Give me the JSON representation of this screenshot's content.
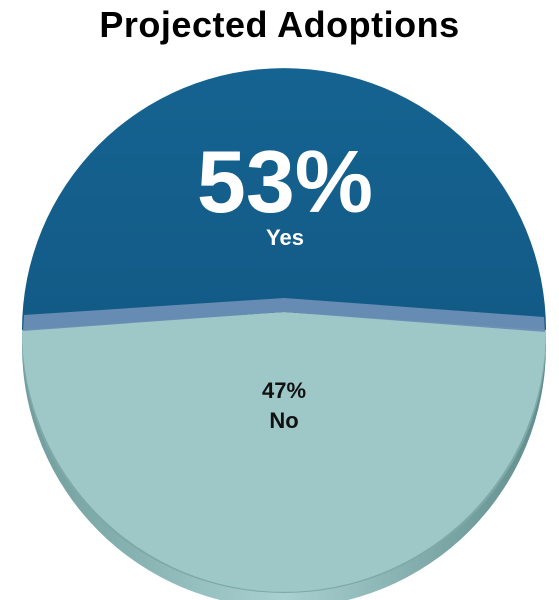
{
  "chart_data": {
    "type": "pie",
    "title": "Projected Adoptions",
    "slices": [
      {
        "label": "Yes",
        "value": 53,
        "value_label": "53%",
        "color": "#15608f"
      },
      {
        "label": "No",
        "value": 47,
        "value_label": "47%",
        "color": "#9ec7c7"
      }
    ],
    "legend": "none",
    "style": "3d"
  }
}
